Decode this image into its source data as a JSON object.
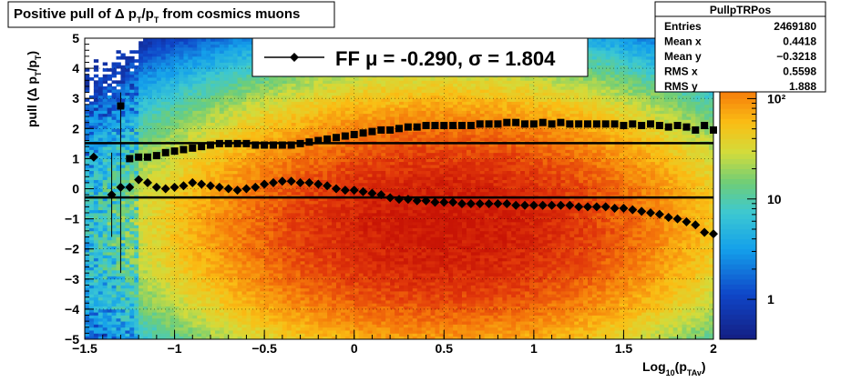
{
  "chart_data": {
    "type": "heatmap",
    "title": "Positive pull of Δ p_T/p_T from cosmics muons",
    "xlabel": "Log_10(p_TAv)",
    "ylabel": "pull (Δ p_T/p_T)",
    "xlim": [
      -1.5,
      2
    ],
    "ylim": [
      -5,
      5
    ],
    "x_ticks": [
      "−1.5",
      "−1",
      "−0.5",
      "0",
      "0.5",
      "1",
      "1.5",
      "2"
    ],
    "y_ticks": [
      "−5",
      "−4",
      "−3",
      "−2",
      "−1",
      "0",
      "1",
      "2",
      "3",
      "4",
      "5"
    ],
    "grid": true,
    "colorbar": {
      "scale": "log",
      "range": [
        0.4,
        400
      ],
      "tick_labels": [
        "1",
        "10",
        "10²"
      ],
      "tick_values": [
        1,
        10,
        100
      ]
    },
    "density": {
      "peak_x": 0.5,
      "peak_y": -1.2,
      "width_x": 0.75,
      "width_y": 2.2,
      "peak_count": 380
    },
    "fit_lines": {
      "mu": -0.29,
      "sigma": 1.804
    },
    "legend": {
      "entry_text": "FF μ = -0.290, σ =   1.804",
      "placement": "top-center"
    },
    "stats_box": {
      "title": "PullpTRPos",
      "rows": [
        {
          "label": "Entries",
          "value": "2469180"
        },
        {
          "label": "Mean x",
          "value": "0.4418"
        },
        {
          "label": "Mean y",
          "value": "−0.3218"
        },
        {
          "label": "RMS x",
          "value": "0.5598"
        },
        {
          "label": "RMS y",
          "value": "1.888"
        }
      ]
    },
    "series": [
      {
        "marker": "diamond",
        "x": [
          -1.45,
          -1.35,
          -1.3,
          -1.25,
          -1.2,
          -1.15,
          -1.1,
          -1.05,
          -1.0,
          -0.95,
          -0.9,
          -0.85,
          -0.8,
          -0.75,
          -0.7,
          -0.65,
          -0.6,
          -0.55,
          -0.5,
          -0.45,
          -0.4,
          -0.35,
          -0.3,
          -0.25,
          -0.2,
          -0.15,
          -0.1,
          -0.05,
          0.0,
          0.05,
          0.1,
          0.15,
          0.2,
          0.25,
          0.3,
          0.35,
          0.4,
          0.45,
          0.5,
          0.55,
          0.6,
          0.65,
          0.7,
          0.75,
          0.8,
          0.85,
          0.9,
          0.95,
          1.0,
          1.05,
          1.1,
          1.15,
          1.2,
          1.25,
          1.3,
          1.35,
          1.4,
          1.45,
          1.5,
          1.55,
          1.6,
          1.65,
          1.7,
          1.75,
          1.8,
          1.85,
          1.9,
          1.95,
          2.0
        ],
        "y": [
          1.05,
          -0.2,
          0.05,
          0.05,
          0.3,
          0.2,
          0.05,
          0.0,
          0.05,
          0.1,
          0.2,
          0.15,
          0.1,
          0.05,
          0.0,
          -0.05,
          0.0,
          0.05,
          0.15,
          0.2,
          0.25,
          0.25,
          0.2,
          0.2,
          0.15,
          0.1,
          0.0,
          -0.05,
          -0.05,
          -0.1,
          -0.15,
          -0.2,
          -0.3,
          -0.35,
          -0.35,
          -0.4,
          -0.4,
          -0.45,
          -0.45,
          -0.45,
          -0.5,
          -0.5,
          -0.5,
          -0.5,
          -0.5,
          -0.5,
          -0.55,
          -0.55,
          -0.55,
          -0.55,
          -0.55,
          -0.55,
          -0.55,
          -0.6,
          -0.6,
          -0.6,
          -0.6,
          -0.65,
          -0.65,
          -0.7,
          -0.75,
          -0.8,
          -0.85,
          -0.95,
          -1.0,
          -1.1,
          -1.2,
          -1.45,
          -1.5
        ]
      },
      {
        "marker": "square",
        "x": [
          -1.3,
          -1.25,
          -1.2,
          -1.15,
          -1.1,
          -1.05,
          -1.0,
          -0.95,
          -0.9,
          -0.85,
          -0.8,
          -0.75,
          -0.7,
          -0.65,
          -0.6,
          -0.55,
          -0.5,
          -0.45,
          -0.4,
          -0.35,
          -0.3,
          -0.25,
          -0.2,
          -0.15,
          -0.1,
          -0.05,
          0.0,
          0.05,
          0.1,
          0.15,
          0.2,
          0.25,
          0.3,
          0.35,
          0.4,
          0.45,
          0.5,
          0.55,
          0.6,
          0.65,
          0.7,
          0.75,
          0.8,
          0.85,
          0.9,
          0.95,
          1.0,
          1.05,
          1.1,
          1.15,
          1.2,
          1.25,
          1.3,
          1.35,
          1.4,
          1.45,
          1.5,
          1.55,
          1.6,
          1.65,
          1.7,
          1.75,
          1.8,
          1.85,
          1.9,
          1.95,
          2.0
        ],
        "y": [
          2.75,
          1.0,
          1.05,
          1.05,
          1.1,
          1.2,
          1.25,
          1.3,
          1.35,
          1.4,
          1.45,
          1.5,
          1.5,
          1.5,
          1.5,
          1.45,
          1.45,
          1.45,
          1.45,
          1.45,
          1.5,
          1.55,
          1.6,
          1.65,
          1.7,
          1.75,
          1.8,
          1.85,
          1.9,
          1.95,
          1.95,
          2.0,
          2.05,
          2.05,
          2.1,
          2.1,
          2.1,
          2.1,
          2.1,
          2.1,
          2.15,
          2.15,
          2.15,
          2.2,
          2.2,
          2.15,
          2.15,
          2.2,
          2.15,
          2.2,
          2.15,
          2.15,
          2.15,
          2.15,
          2.15,
          2.15,
          2.1,
          2.15,
          2.1,
          2.15,
          2.1,
          2.05,
          2.1,
          2.05,
          1.95,
          2.1,
          1.95
        ]
      }
    ]
  }
}
